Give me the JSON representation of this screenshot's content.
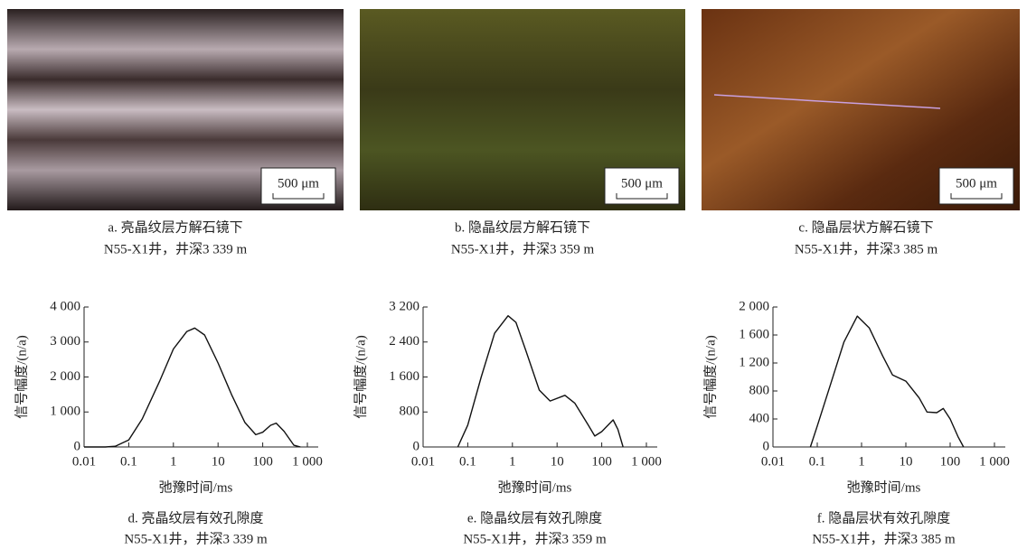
{
  "photos": [
    {
      "scale_bar": "500 μm",
      "caption": [
        "a. 亮晶纹层方解石镜下",
        "N55-X1井，井深3 339 m"
      ]
    },
    {
      "scale_bar": "500 μm",
      "caption": [
        "b. 隐晶纹层方解石镜下",
        "N55-X1井，井深3 359 m"
      ]
    },
    {
      "scale_bar": "500 μm",
      "caption": [
        "c. 隐晶层状方解石镜下",
        "N55-X1井，井深3 385 m"
      ]
    }
  ],
  "chart_data": [
    {
      "type": "line",
      "x_label": "弛豫时间/ms",
      "y_label": "信号幅度/(n/a)",
      "caption": [
        "d. 亮晶纹层有效孔隙度",
        "N55-X1井，井深3 339 m"
      ],
      "log_x": true,
      "color": "#111111",
      "x": [
        0.01,
        0.03,
        0.05,
        0.1,
        0.2,
        0.5,
        1,
        2,
        3,
        5,
        10,
        20,
        40,
        70,
        100,
        150,
        200,
        300,
        500,
        700
      ],
      "values": [
        0,
        0,
        20,
        200,
        800,
        1900,
        2800,
        3300,
        3400,
        3200,
        2400,
        1500,
        700,
        350,
        420,
        620,
        680,
        450,
        50,
        0
      ],
      "xlim": [
        0.01,
        1000
      ],
      "xticks": [
        0.01,
        0.1,
        1,
        10,
        100,
        {
          "value": 1000,
          "label": "1 000"
        }
      ],
      "ylim": [
        0,
        4000
      ],
      "yticks": [
        0,
        {
          "value": 1000,
          "label": "1 000"
        },
        {
          "value": 2000,
          "label": "2 000"
        },
        {
          "value": 3000,
          "label": "3 000"
        },
        {
          "value": 4000,
          "label": "4 000"
        }
      ]
    },
    {
      "type": "line",
      "x_label": "弛豫时间/ms",
      "y_label": "信号幅度/(n/a)",
      "caption": [
        "e. 隐晶纹层有效孔隙度",
        "N55-X1井，井深3 359 m"
      ],
      "log_x": true,
      "color": "#111111",
      "x": [
        0.06,
        0.1,
        0.2,
        0.4,
        0.8,
        1.2,
        2,
        4,
        7,
        15,
        25,
        50,
        70,
        100,
        180,
        230,
        300
      ],
      "values": [
        0,
        500,
        1600,
        2600,
        3000,
        2850,
        2200,
        1300,
        1050,
        1180,
        1000,
        500,
        250,
        350,
        620,
        400,
        0
      ],
      "xlim": [
        0.01,
        1000
      ],
      "xticks": [
        0.01,
        0.1,
        1,
        10,
        100,
        {
          "value": 1000,
          "label": "1 000"
        }
      ],
      "ylim": [
        0,
        3200
      ],
      "yticks": [
        0,
        800,
        {
          "value": 1600,
          "label": "1 600"
        },
        {
          "value": 2400,
          "label": "2 400"
        },
        {
          "value": 3200,
          "label": "3 200"
        }
      ]
    },
    {
      "type": "line",
      "x_label": "弛豫时间/ms",
      "y_label": "信号幅度/(n/a)",
      "caption": [
        "f. 隐晶层状有效孔隙度",
        "N55-X1井，井深3 385 m"
      ],
      "log_x": true,
      "color": "#111111",
      "x": [
        0.07,
        0.1,
        0.2,
        0.4,
        0.8,
        1.5,
        3,
        5,
        10,
        20,
        30,
        50,
        70,
        100,
        150,
        200
      ],
      "values": [
        0,
        300,
        900,
        1500,
        1870,
        1700,
        1300,
        1030,
        940,
        700,
        500,
        490,
        550,
        400,
        150,
        0
      ],
      "xlim": [
        0.01,
        1000
      ],
      "xticks": [
        0.01,
        0.1,
        1,
        10,
        100,
        {
          "value": 1000,
          "label": "1 000"
        }
      ],
      "ylim": [
        0,
        2000
      ],
      "yticks": [
        0,
        400,
        800,
        {
          "value": 1200,
          "label": "1 200"
        },
        {
          "value": 1600,
          "label": "1 600"
        },
        {
          "value": 2000,
          "label": "2 000"
        }
      ]
    }
  ]
}
